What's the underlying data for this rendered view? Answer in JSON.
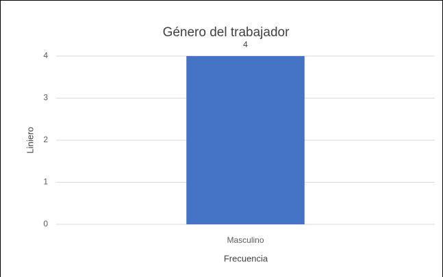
{
  "chart_data": {
    "type": "bar",
    "title": "Género del trabajador",
    "categories": [
      "Masculino"
    ],
    "values": [
      4
    ],
    "color": "#4472c4",
    "xlabel": "Frecuencia",
    "ylabel": "Liniero",
    "ylim": [
      0,
      4
    ],
    "yticks": [
      0,
      1,
      2,
      3,
      4
    ],
    "grid": true
  }
}
